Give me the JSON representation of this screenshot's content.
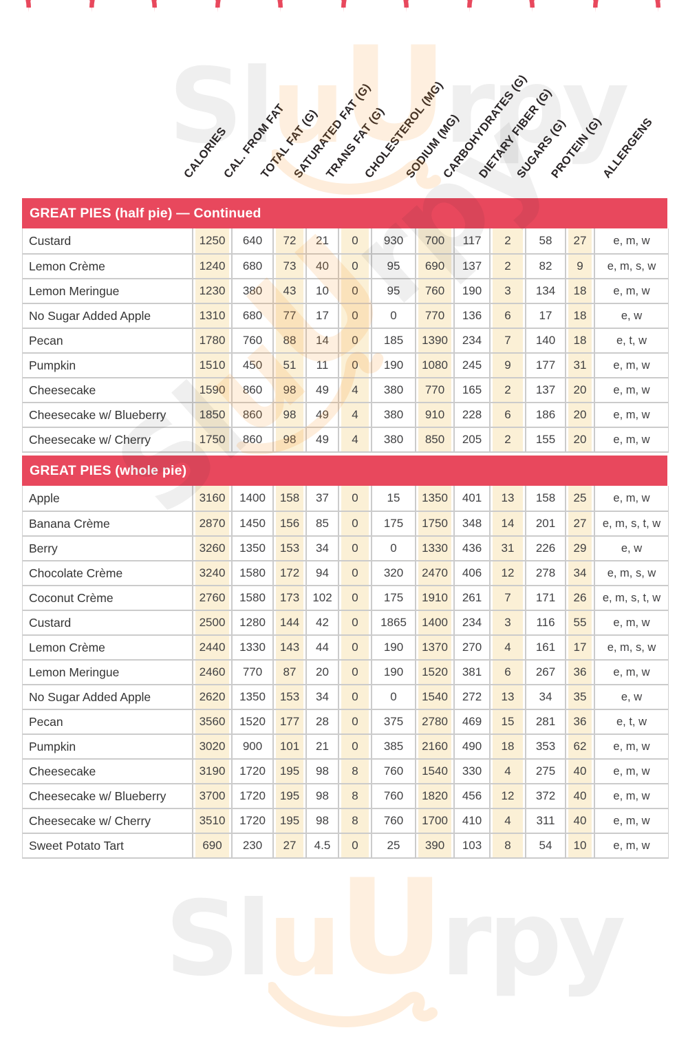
{
  "theme": {
    "accent_red": "#e8485d",
    "shaded_cell_cream": "#fbf0d6",
    "row_line_gray": "#cbcbcb",
    "watermark_orange": "#f68c1e"
  },
  "watermark": {
    "part1": "Sl",
    "part2": "u",
    "part3": "U",
    "part4": "rpy"
  },
  "table": {
    "columns": [
      "CALORIES",
      "CAL. FROM FAT",
      "TOTAL FAT (G)",
      "SATURATED FAT (G)",
      "TRANS FAT (G)",
      "CHOLESTEROL (MG)",
      "SODIUM (MG)",
      "CARBOHYDRATES (G)",
      "DIETARY FIBER (G)",
      "SUGARS (G)",
      "PROTEIN (G)",
      "ALLERGENS"
    ],
    "shaded_columns": [
      0,
      2,
      4,
      6,
      8,
      10
    ],
    "sections": [
      {
        "title": "GREAT PIES (half pie) — Continued",
        "rows": [
          {
            "name": "Custard",
            "values": [
              "1250",
              "640",
              "72",
              "21",
              "0",
              "930",
              "700",
              "117",
              "2",
              "58",
              "27"
            ],
            "allergens": "e, m, w"
          },
          {
            "name": "Lemon Crème",
            "values": [
              "1240",
              "680",
              "73",
              "40",
              "0",
              "95",
              "690",
              "137",
              "2",
              "82",
              "9"
            ],
            "allergens": "e, m, s, w"
          },
          {
            "name": "Lemon Meringue",
            "values": [
              "1230",
              "380",
              "43",
              "10",
              "0",
              "95",
              "760",
              "190",
              "3",
              "134",
              "18"
            ],
            "allergens": "e, m, w"
          },
          {
            "name": "No Sugar Added Apple",
            "values": [
              "1310",
              "680",
              "77",
              "17",
              "0",
              "0",
              "770",
              "136",
              "6",
              "17",
              "18"
            ],
            "allergens": "e, w"
          },
          {
            "name": "Pecan",
            "values": [
              "1780",
              "760",
              "88",
              "14",
              "0",
              "185",
              "1390",
              "234",
              "7",
              "140",
              "18"
            ],
            "allergens": "e, t, w"
          },
          {
            "name": "Pumpkin",
            "values": [
              "1510",
              "450",
              "51",
              "11",
              "0",
              "190",
              "1080",
              "245",
              "9",
              "177",
              "31"
            ],
            "allergens": "e, m, w"
          },
          {
            "name": "Cheesecake",
            "values": [
              "1590",
              "860",
              "98",
              "49",
              "4",
              "380",
              "770",
              "165",
              "2",
              "137",
              "20"
            ],
            "allergens": "e, m, w"
          },
          {
            "name": "Cheesecake w/ Blueberry",
            "values": [
              "1850",
              "860",
              "98",
              "49",
              "4",
              "380",
              "910",
              "228",
              "6",
              "186",
              "20"
            ],
            "allergens": "e, m, w"
          },
          {
            "name": "Cheesecake w/ Cherry",
            "values": [
              "1750",
              "860",
              "98",
              "49",
              "4",
              "380",
              "850",
              "205",
              "2",
              "155",
              "20"
            ],
            "allergens": "e, m, w"
          }
        ]
      },
      {
        "title": "GREAT PIES (whole pie)",
        "rows": [
          {
            "name": "Apple",
            "values": [
              "3160",
              "1400",
              "158",
              "37",
              "0",
              "15",
              "1350",
              "401",
              "13",
              "158",
              "25"
            ],
            "allergens": "e, m, w"
          },
          {
            "name": "Banana Crème",
            "values": [
              "2870",
              "1450",
              "156",
              "85",
              "0",
              "175",
              "1750",
              "348",
              "14",
              "201",
              "27"
            ],
            "allergens": "e, m, s, t, w"
          },
          {
            "name": "Berry",
            "values": [
              "3260",
              "1350",
              "153",
              "34",
              "0",
              "0",
              "1330",
              "436",
              "31",
              "226",
              "29"
            ],
            "allergens": "e, w"
          },
          {
            "name": "Chocolate Crème",
            "values": [
              "3240",
              "1580",
              "172",
              "94",
              "0",
              "320",
              "2470",
              "406",
              "12",
              "278",
              "34"
            ],
            "allergens": "e, m, s, w"
          },
          {
            "name": "Coconut Crème",
            "values": [
              "2760",
              "1580",
              "173",
              "102",
              "0",
              "175",
              "1910",
              "261",
              "7",
              "171",
              "26"
            ],
            "allergens": "e, m, s, t, w"
          },
          {
            "name": "Custard",
            "values": [
              "2500",
              "1280",
              "144",
              "42",
              "0",
              "1865",
              "1400",
              "234",
              "3",
              "116",
              "55"
            ],
            "allergens": "e, m, w"
          },
          {
            "name": "Lemon Crème",
            "values": [
              "2440",
              "1330",
              "143",
              "44",
              "0",
              "190",
              "1370",
              "270",
              "4",
              "161",
              "17"
            ],
            "allergens": "e, m, s, w"
          },
          {
            "name": "Lemon Meringue",
            "values": [
              "2460",
              "770",
              "87",
              "20",
              "0",
              "190",
              "1520",
              "381",
              "6",
              "267",
              "36"
            ],
            "allergens": "e, m, w"
          },
          {
            "name": "No Sugar Added Apple",
            "values": [
              "2620",
              "1350",
              "153",
              "34",
              "0",
              "0",
              "1540",
              "272",
              "13",
              "34",
              "35"
            ],
            "allergens": "e, w"
          },
          {
            "name": "Pecan",
            "values": [
              "3560",
              "1520",
              "177",
              "28",
              "0",
              "375",
              "2780",
              "469",
              "15",
              "281",
              "36"
            ],
            "allergens": "e, t, w"
          },
          {
            "name": "Pumpkin",
            "values": [
              "3020",
              "900",
              "101",
              "21",
              "0",
              "385",
              "2160",
              "490",
              "18",
              "353",
              "62"
            ],
            "allergens": "e, m, w"
          },
          {
            "name": "Cheesecake",
            "values": [
              "3190",
              "1720",
              "195",
              "98",
              "8",
              "760",
              "1540",
              "330",
              "4",
              "275",
              "40"
            ],
            "allergens": "e, m, w"
          },
          {
            "name": "Cheesecake w/ Blueberry",
            "values": [
              "3700",
              "1720",
              "195",
              "98",
              "8",
              "760",
              "1820",
              "456",
              "12",
              "372",
              "40"
            ],
            "allergens": "e, m, w"
          },
          {
            "name": "Cheesecake w/ Cherry",
            "values": [
              "3510",
              "1720",
              "195",
              "98",
              "8",
              "760",
              "1700",
              "410",
              "4",
              "311",
              "40"
            ],
            "allergens": "e, m, w"
          },
          {
            "name": "Sweet Potato Tart",
            "values": [
              "690",
              "230",
              "27",
              "4.5",
              "0",
              "25",
              "390",
              "103",
              "8",
              "54",
              "10"
            ],
            "allergens": "e, m, w"
          }
        ]
      }
    ]
  }
}
